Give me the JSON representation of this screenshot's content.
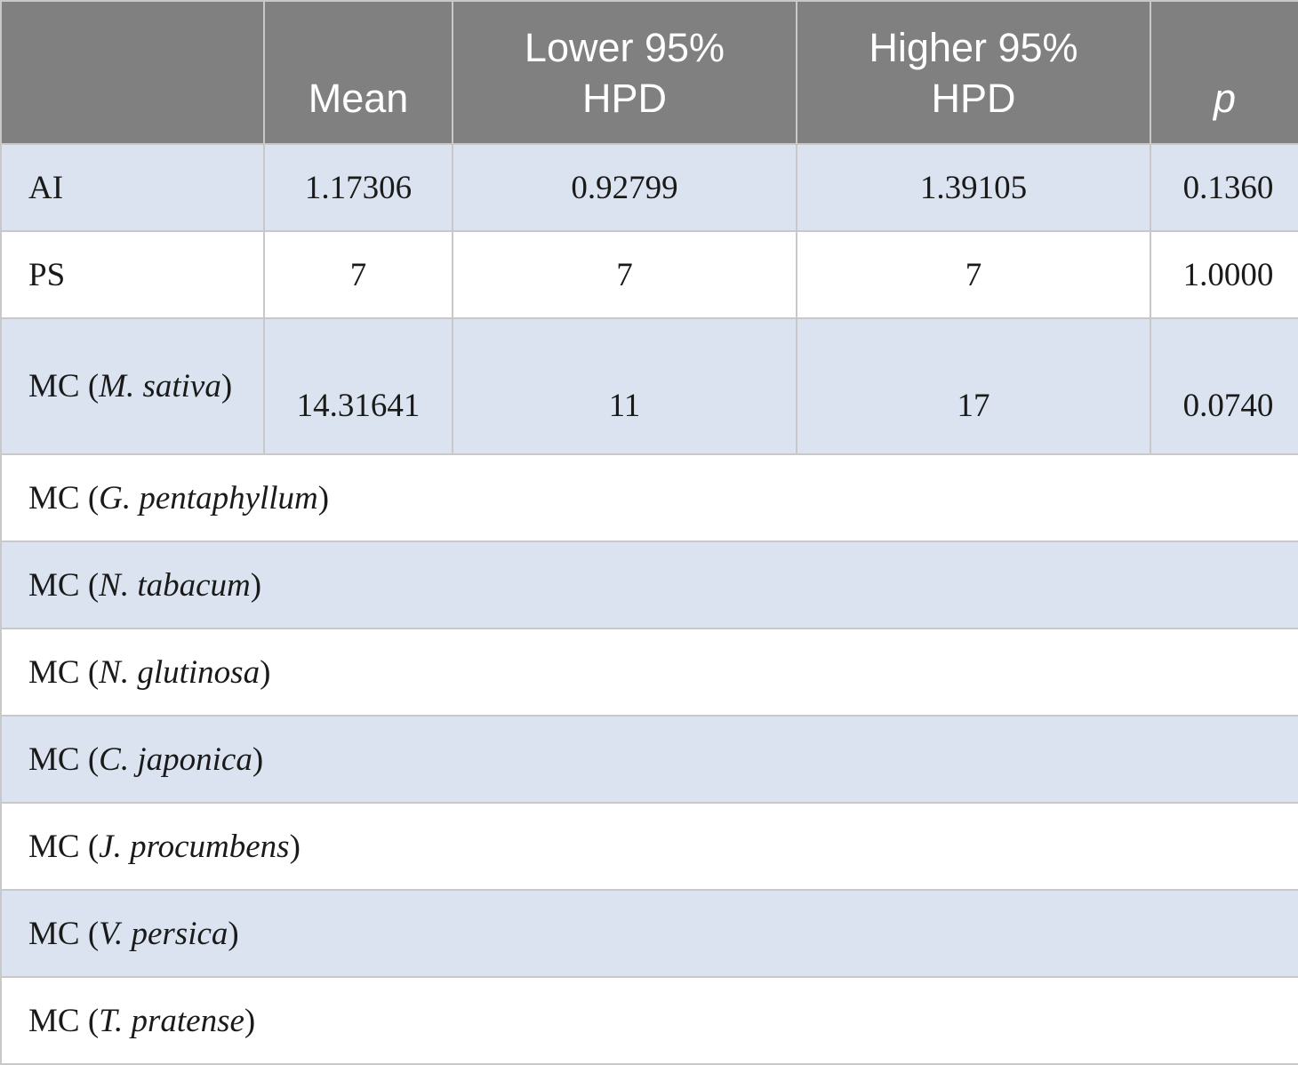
{
  "table": {
    "headers": [
      {
        "line1": "",
        "line2": ""
      },
      {
        "line1": "",
        "line2": "Mean"
      },
      {
        "line1": "Lower 95%",
        "line2": "HPD"
      },
      {
        "line1": "Higher 95%",
        "line2": "HPD"
      },
      {
        "line1": "",
        "line2": "p"
      }
    ],
    "rows": [
      {
        "label": "AI",
        "mean": "1.17306",
        "lower": "0.92799",
        "higher": "1.39105",
        "p": "0.1360"
      },
      {
        "label": "PS",
        "mean": "7",
        "lower": "7",
        "higher": "7",
        "p": "1.0000"
      },
      {
        "label_prefix": "MC (",
        "label_species": "M. sativa",
        "label_suffix": ")",
        "mean": "14.31641",
        "lower": "11",
        "higher": "17",
        "p": "0.0740"
      }
    ],
    "species_rows": [
      {
        "prefix": "MC (",
        "species": "G. pentaphyllum",
        "suffix": ")"
      },
      {
        "prefix": "MC (",
        "species": "N. tabacum",
        "suffix": ")"
      },
      {
        "prefix": "MC (",
        "species": "N. glutinosa",
        "suffix": ")"
      },
      {
        "prefix": "MC (",
        "species": "C. japonica",
        "suffix": ")"
      },
      {
        "prefix": "MC (",
        "species": "J. procumbens",
        "suffix": ")"
      },
      {
        "prefix": "MC (",
        "species": "V. persica",
        "suffix": ")"
      },
      {
        "prefix": "MC (",
        "species": "T. pratense",
        "suffix": ")"
      }
    ],
    "colors": {
      "header_bg": "#808080",
      "header_text": "#ffffff",
      "shaded_row": "#dae3ef",
      "plain_row": "#ffffff",
      "border": "#c8c8c8"
    }
  }
}
